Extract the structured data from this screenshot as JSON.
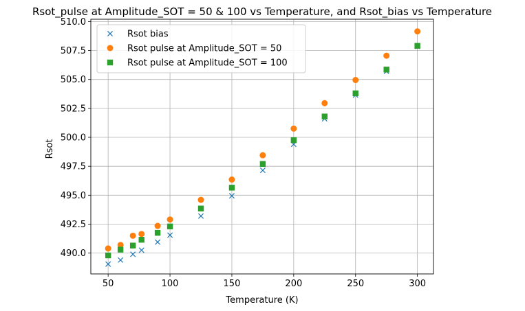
{
  "chart_data": {
    "type": "scatter",
    "title": "Rsot_pulse at Amplitude_SOT = 50 & 100 vs Temperature, and Rsot_bias vs Temperature",
    "xlabel": "Temperature (K)",
    "ylabel": "Rsot",
    "xlim": [
      36,
      313
    ],
    "ylim": [
      488.2,
      510.2
    ],
    "xticks": [
      50,
      100,
      150,
      200,
      250,
      300
    ],
    "yticks": [
      490.0,
      492.5,
      495.0,
      497.5,
      500.0,
      502.5,
      505.0,
      507.5,
      510.0
    ],
    "xtick_labels": [
      "50",
      "100",
      "150",
      "200",
      "250",
      "300"
    ],
    "ytick_labels": [
      "490.0",
      "492.5",
      "495.0",
      "497.5",
      "500.0",
      "502.5",
      "505.0",
      "507.5",
      "510.0"
    ],
    "grid": true,
    "legend_position": "top-left",
    "x": [
      50,
      60,
      70,
      77,
      90,
      100,
      125,
      150,
      175,
      200,
      225,
      250,
      275,
      300
    ],
    "series": [
      {
        "name": "Rsot bias",
        "marker": "x",
        "color": "#1f77b4",
        "values": [
          489.05,
          489.4,
          489.9,
          490.25,
          490.95,
          491.55,
          493.2,
          494.95,
          497.15,
          499.4,
          501.6,
          503.65,
          505.7,
          507.85
        ]
      },
      {
        "name": "Rsot pulse at Amplitude_SOT = 50",
        "marker": "circle",
        "color": "#ff7f0e",
        "values": [
          490.4,
          490.7,
          491.5,
          491.65,
          492.35,
          492.9,
          494.6,
          496.35,
          498.45,
          500.75,
          502.95,
          504.95,
          507.05,
          509.15
        ]
      },
      {
        "name": "Rsot pulse at Amplitude_SOT = 100",
        "marker": "square",
        "color": "#2ca02c",
        "values": [
          489.8,
          490.3,
          490.65,
          491.15,
          491.75,
          492.3,
          493.85,
          495.65,
          497.7,
          499.75,
          501.8,
          503.8,
          505.85,
          507.9
        ]
      }
    ]
  }
}
